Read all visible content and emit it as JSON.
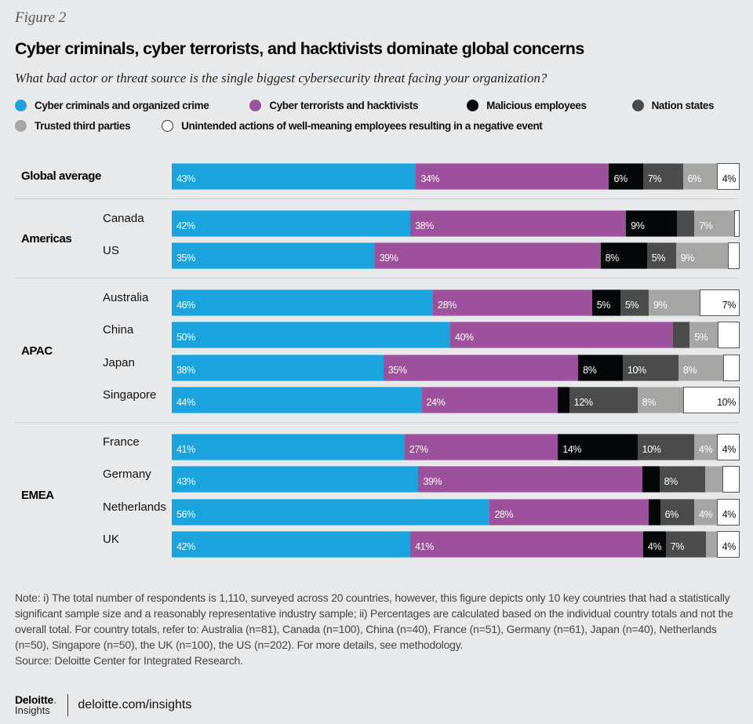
{
  "figure_label": "Figure 2",
  "title": "Cyber criminals, cyber terrorists, and hacktivists dominate global concerns",
  "subtitle": "What bad actor or threat source is the single biggest cybersecurity threat facing your organization?",
  "legend": {
    "row1": [
      {
        "label": "Cyber criminals and organized crime",
        "color": "#1aa3dc",
        "icon": "filled-circle"
      },
      {
        "label": "Cyber terrorists and hacktivists",
        "color": "#9d509b",
        "icon": "filled-circle"
      },
      {
        "label": "Malicious employees",
        "color": "#040708",
        "icon": "filled-circle"
      },
      {
        "label": "Nation states",
        "color": "#4b4b4b",
        "icon": "filled-circle"
      }
    ],
    "row2": [
      {
        "label": "Trusted third parties",
        "color": "#a5a5a3",
        "icon": "filled-circle"
      },
      {
        "label": "Unintended actions of well-meaning employees resulting in a negative event",
        "color": "#ffffff",
        "icon": "outlined-circle"
      }
    ]
  },
  "chart_data": {
    "type": "bar",
    "orientation": "horizontal",
    "stacked": true,
    "title": "Cyber criminals, cyber terrorists, and hacktivists dominate global concerns",
    "subtitle": "What bad actor or threat source is the single biggest cybersecurity threat facing your organization?",
    "xlabel": "",
    "ylabel": "",
    "xlim": [
      0,
      100
    ],
    "unit": "%",
    "legend_position": "top",
    "series_names": [
      "Cyber criminals and organized crime",
      "Cyber terrorists and hacktivists",
      "Malicious employees",
      "Nation states",
      "Trusted third parties",
      "Unintended actions of well-meaning employees resulting in a negative event"
    ],
    "series_colors": [
      "#1aa3dc",
      "#9d509b",
      "#040708",
      "#4b4b4b",
      "#a5a5a3",
      "#ffffff"
    ],
    "groups": [
      {
        "region": "Global average",
        "rows": [
          {
            "label": "",
            "values": [
              43,
              34,
              6,
              7,
              6,
              4
            ],
            "labels": [
              "43%",
              "34%",
              "6%",
              "7%",
              "6%",
              "4%"
            ]
          }
        ]
      },
      {
        "region": "Americas",
        "rows": [
          {
            "label": "Canada",
            "values": [
              42,
              38,
              9,
              3,
              7,
              1
            ],
            "labels": [
              "42%",
              "38%",
              "9%",
              "",
              "7%",
              ""
            ]
          },
          {
            "label": "US",
            "values": [
              35,
              39,
              8,
              5,
              9,
              2
            ],
            "labels": [
              "35%",
              "39%",
              "8%",
              "5%",
              "9%",
              ""
            ]
          }
        ]
      },
      {
        "region": "APAC",
        "rows": [
          {
            "label": "Australia",
            "values": [
              46,
              28,
              5,
              5,
              9,
              7
            ],
            "labels": [
              "46%",
              "28%",
              "5%",
              "5%",
              "9%",
              "7%"
            ]
          },
          {
            "label": "China",
            "values": [
              50,
              40,
              0,
              3,
              5,
              4
            ],
            "labels": [
              "50%",
              "40%",
              "",
              "",
              "5%",
              ""
            ]
          },
          {
            "label": "Japan",
            "values": [
              38,
              35,
              8,
              10,
              8,
              3
            ],
            "labels": [
              "38%",
              "35%",
              "8%",
              "10%",
              "8%",
              ""
            ]
          },
          {
            "label": "Singapore",
            "values": [
              44,
              24,
              2,
              12,
              8,
              10
            ],
            "labels": [
              "44%",
              "24%",
              "",
              "12%",
              "8%",
              "10%"
            ]
          }
        ]
      },
      {
        "region": "EMEA",
        "rows": [
          {
            "label": "France",
            "values": [
              41,
              27,
              14,
              10,
              4,
              4
            ],
            "labels": [
              "41%",
              "27%",
              "14%",
              "10%",
              "4%",
              "4%"
            ]
          },
          {
            "label": "Germany",
            "values": [
              43,
              39,
              3,
              8,
              3,
              3
            ],
            "labels": [
              "43%",
              "39%",
              "",
              "8%",
              "",
              ""
            ]
          },
          {
            "label": "Netherlands",
            "values": [
              56,
              28,
              2,
              6,
              4,
              4
            ],
            "labels": [
              "56%",
              "28%",
              "",
              "6%",
              "4%",
              "4%"
            ]
          },
          {
            "label": "UK",
            "values": [
              42,
              41,
              4,
              7,
              2,
              4
            ],
            "labels": [
              "42%",
              "41%",
              "4%",
              "7%",
              "",
              "4%"
            ]
          }
        ]
      }
    ]
  },
  "note": "Note: i) The total number of respondents is 1,110, surveyed across 20 countries, however, this figure depicts only 10 key countries that had a statistically significant sample size and a reasonably representative industry sample; ii) Percentages are calculated based on the individual country totals and not the overall total. For country totals, refer to: Australia (n=81), Canada (n=100), China (n=40), France (n=51), Germany (n=61), Japan (n=40), Netherlands (n=50), Singapore (n=50), the UK (n=100), the US (n=202). For more details, see methodology.",
  "source": "Source: Deloitte Center for Integrated Research.",
  "footer": {
    "logo_main": "Deloitte",
    "logo_dot": ".",
    "logo_sub": "Insights",
    "link": "deloitte.com/insights"
  }
}
